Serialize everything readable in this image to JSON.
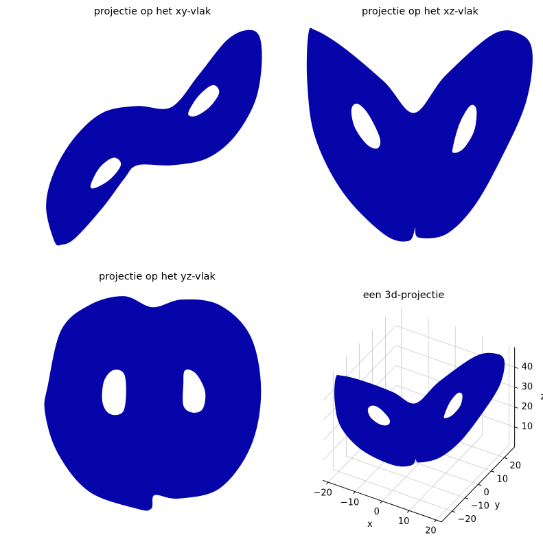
{
  "chart_data": [
    {
      "type": "line",
      "title": "projectie op het xy-vlak",
      "xlim": [
        -21,
        21
      ],
      "ylim": [
        -28.5,
        28.5
      ],
      "series": [
        {
          "color": "#0505aa",
          "x": [
            -18.0,
            -19.5,
            -18.0,
            -14.2,
            -9.1,
            -2.8,
            3.5,
            8.6,
            13.7,
            17.5,
            19.7,
            20.0,
            18.7,
            14.9,
            9.9,
            3.5,
            -2.8,
            -5.3,
            -9.1,
            -14.2,
            -16.7
          ],
          "y": [
            -26.8,
            -17.9,
            -8.9,
            0,
            6.3,
            8.0,
            7.7,
            16.1,
            25.0,
            27.7,
            25.9,
            17.9,
            8.9,
            0,
            -5.4,
            -7.1,
            -7.1,
            -10.7,
            -17.9,
            -25.9,
            -27.7
          ]
        },
        {
          "color": "#ffffff",
          "x": [
            6.7,
            8.6,
            11.1,
            12.2,
            10.5,
            8.0
          ],
          "y": [
            6.3,
            10.7,
            13.4,
            11.6,
            8.0,
            5.7
          ]
        },
        {
          "color": "#ffffff",
          "x": [
            -11.3,
            -9.7,
            -7.2,
            -5.9,
            -7.8,
            -10.4
          ],
          "y": [
            -12.5,
            -8.0,
            -5.4,
            -7.1,
            -10.7,
            -12.9
          ]
        }
      ]
    },
    {
      "type": "line",
      "title": "projectie op het xz-vlak",
      "xlim": [
        -20,
        20
      ],
      "ylim": [
        0,
        50
      ],
      "series": [
        {
          "color": "#0505aa",
          "x": [
            -19.4,
            -18.2,
            -13.3,
            -6.1,
            -0.8,
            4.8,
            13.3,
            18.2,
            20.0,
            18.8,
            14.5,
            9.7,
            4.8,
            0,
            -0.6,
            -1.8,
            -6.1,
            -13.3,
            -18.2,
            -19.6
          ],
          "y": [
            49.2,
            50.0,
            45.9,
            37.7,
            30.3,
            39.3,
            49.2,
            48.9,
            44.3,
            32.8,
            19.7,
            8.2,
            1.6,
            0.8,
            3.3,
            0,
            1.6,
            11.5,
            24.6,
            37.7
          ]
        },
        {
          "color": "#ffffff",
          "x": [
            -11.8,
            -10.9,
            -9.1,
            -7.0,
            -7.3,
            -9.1,
            -11.2
          ],
          "y": [
            31.1,
            32.5,
            30.3,
            24.6,
            22.1,
            23.0,
            27.0
          ]
        },
        {
          "color": "#ffffff",
          "x": [
            6.1,
            7.3,
            9.1,
            10.1,
            9.7,
            7.9,
            6.3
          ],
          "y": [
            22.1,
            27.9,
            32.0,
            31.1,
            26.2,
            22.1,
            21.0
          ]
        }
      ]
    },
    {
      "type": "line",
      "title": "projectie op het yz-vlak",
      "xlim": [
        -29,
        29
      ],
      "ylim": [
        0,
        50
      ],
      "series": [
        {
          "color": "#0505aa",
          "x": [
            -27.1,
            -23.6,
            -16.4,
            -7.5,
            0,
            7.7,
            17.5,
            25.5,
            28.2,
            25.5,
            17.5,
            6.8,
            0.5,
            -0.4,
            -3.9,
            -16.4,
            -24.5,
            -27.9
          ],
          "y": [
            29.0,
            41.9,
            47.6,
            49.7,
            47.1,
            48.9,
            47.6,
            40.3,
            27.4,
            14.5,
            4.8,
            2.4,
            3.2,
            0,
            0,
            4.0,
            12.9,
            22.6
          ]
        },
        {
          "color": "#ffffff",
          "x": [
            -12.5,
            -10.2,
            -7.5,
            -7.0,
            -7.9,
            -11.1,
            -12.9
          ],
          "y": [
            29.8,
            32.3,
            31.5,
            26.6,
            22.6,
            22.3,
            25.0
          ]
        },
        {
          "color": "#ffffff",
          "x": [
            8.6,
            11.3,
            13.6,
            13.0,
            10.4,
            8.2,
            8.2
          ],
          "y": [
            32.3,
            31.5,
            27.4,
            23.4,
            22.6,
            24.2,
            29.0
          ]
        }
      ]
    },
    {
      "type": "line3d",
      "title": "een 3d-projectie",
      "xlabel": "x",
      "ylabel": "y",
      "zlabel": "z",
      "xlim": [
        -22,
        22
      ],
      "ylim": [
        -28,
        28
      ],
      "zlim": [
        0,
        50
      ],
      "xticks": [
        {
          "value": -20,
          "label": "−20"
        },
        {
          "value": -10,
          "label": "−10"
        },
        0,
        10,
        20
      ],
      "yticks": [
        {
          "value": -20,
          "label": "−20"
        },
        {
          "value": -10,
          "label": "−10"
        },
        0,
        10,
        20
      ],
      "zticks": [
        10,
        20,
        30,
        40
      ],
      "series": [
        {
          "color": "#0505aa",
          "x": [
            -19.4,
            -18.2,
            -13.3,
            -6.1,
            -0.8,
            4.8,
            13.3,
            18.2,
            20.0,
            18.8,
            14.5,
            9.7,
            4.8,
            0,
            -0.6,
            -1.8,
            -6.1,
            -13.3,
            -18.2,
            -19.6
          ],
          "y": [
            -23.3,
            -21.8,
            -16.0,
            -7.3,
            -1.0,
            5.8,
            16.0,
            21.8,
            24.0,
            22.6,
            17.4,
            11.6,
            5.8,
            0,
            -0.7,
            -2.2,
            -7.3,
            -16.0,
            -21.8,
            -23.5
          ],
          "z": [
            49.2,
            50.0,
            45.9,
            37.7,
            30.3,
            39.3,
            49.2,
            48.9,
            44.3,
            32.8,
            19.7,
            8.2,
            1.6,
            0.8,
            3.3,
            0,
            1.6,
            11.5,
            24.6,
            37.7
          ]
        },
        {
          "color": "#ffffff",
          "x": [
            -11.8,
            -10.9,
            -9.1,
            -7.0,
            -7.3,
            -9.1,
            -11.2
          ],
          "y": [
            -14.2,
            -13.1,
            -10.9,
            -8.4,
            -8.8,
            -10.9,
            -13.4
          ],
          "z": [
            31.1,
            32.5,
            30.3,
            24.6,
            22.1,
            23.0,
            27.0
          ]
        },
        {
          "color": "#ffffff",
          "x": [
            6.1,
            7.3,
            9.1,
            10.1,
            9.7,
            7.9,
            6.3
          ],
          "y": [
            7.3,
            8.8,
            10.9,
            12.1,
            11.6,
            9.5,
            7.6
          ],
          "z": [
            22.1,
            27.9,
            32.0,
            31.1,
            26.2,
            22.1,
            21.0
          ]
        }
      ]
    }
  ]
}
